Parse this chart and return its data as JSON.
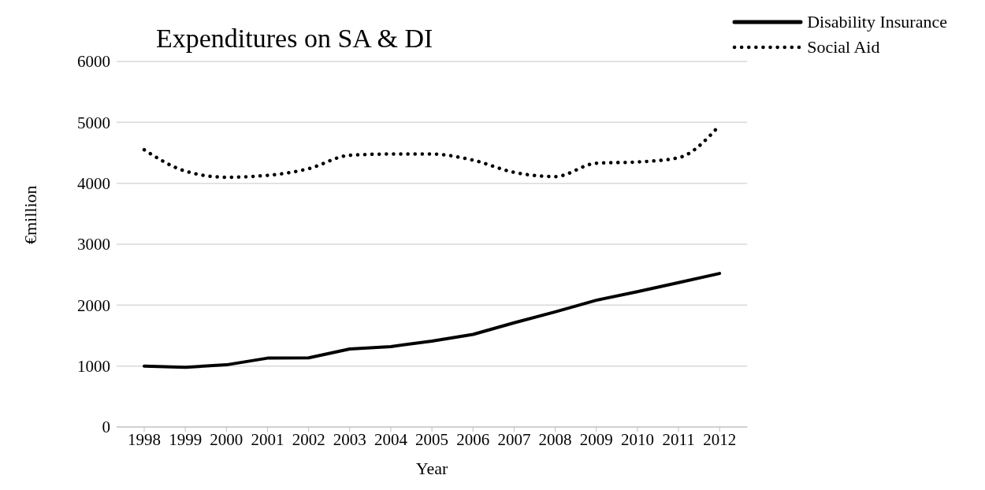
{
  "chart_data": {
    "type": "line",
    "title": "Expenditures on SA & DI",
    "xlabel": "Year",
    "ylabel": "€million",
    "categories": [
      "1998",
      "1999",
      "2000",
      "2001",
      "2002",
      "2003",
      "2004",
      "2005",
      "2006",
      "2007",
      "2008",
      "2009",
      "2010",
      "2011",
      "2012"
    ],
    "series": [
      {
        "name": "Disability Insurance",
        "color": "#000000",
        "line_style": "solid",
        "values": [
          1000,
          980,
          1020,
          1130,
          1135,
          1280,
          1320,
          1410,
          1520,
          1710,
          1890,
          2080,
          2220,
          2370,
          2520
        ]
      },
      {
        "name": "Social Aid",
        "color": "#000000",
        "line_style": "dotted",
        "values": [
          4550,
          4200,
          4100,
          4130,
          4240,
          4460,
          4480,
          4480,
          4380,
          4180,
          4110,
          4330,
          4350,
          4420,
          4950
        ]
      }
    ],
    "ylim": [
      0,
      6000
    ],
    "yticks": [
      0,
      1000,
      2000,
      3000,
      4000,
      5000,
      6000
    ],
    "grid": "y",
    "legend": "top right",
    "marker": "none"
  }
}
